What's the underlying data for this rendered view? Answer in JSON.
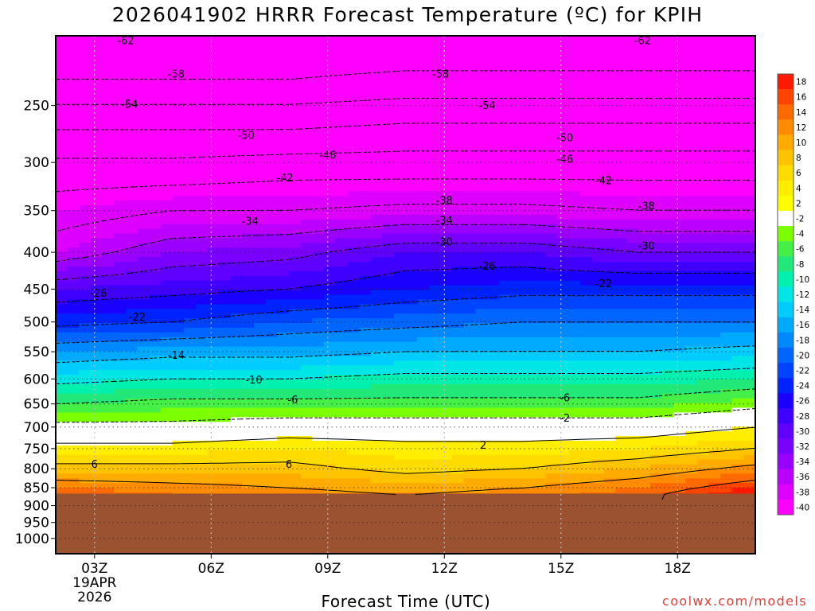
{
  "chart_data": {
    "type": "heatmap",
    "title": "2026041902 HRRR Forecast Temperature (ºC) for KPIH",
    "xlabel": "Forecast Time (UTC)",
    "ylabel": "",
    "credit": "coolwx.com/models",
    "x_range_hours": [
      2,
      20
    ],
    "y_axis": {
      "scale": "log",
      "range_hPa": [
        200,
        1050
      ],
      "ticks": [
        250,
        300,
        350,
        400,
        450,
        500,
        550,
        600,
        650,
        700,
        750,
        800,
        850,
        900,
        950,
        1000
      ]
    },
    "x_ticks": [
      {
        "hour": 3,
        "label": "03Z",
        "sub1": "19APR",
        "sub2": "2026"
      },
      {
        "hour": 6,
        "label": "06Z",
        "sub1": "",
        "sub2": ""
      },
      {
        "hour": 9,
        "label": "09Z",
        "sub1": "",
        "sub2": ""
      },
      {
        "hour": 12,
        "label": "12Z",
        "sub1": "",
        "sub2": ""
      },
      {
        "hour": 15,
        "label": "15Z",
        "sub1": "",
        "sub2": ""
      },
      {
        "hour": 18,
        "label": "18Z",
        "sub1": "",
        "sub2": ""
      }
    ],
    "grid": true,
    "surface_pressure_hPa": 866,
    "surface_color": "#9a5230",
    "colorbar": {
      "labels": [
        "18",
        "16",
        "14",
        "12",
        "10",
        "8",
        "6",
        "4",
        "2",
        "-2",
        "-4",
        "-6",
        "-8",
        "-10",
        "-12",
        "-14",
        "-16",
        "-18",
        "-20",
        "-22",
        "-24",
        "-26",
        "-28",
        "-30",
        "-32",
        "-34",
        "-36",
        "-38",
        "-40"
      ],
      "colors": [
        "#ff1a00",
        "#ff4400",
        "#ff6a00",
        "#ff8c00",
        "#ffab00",
        "#ffc400",
        "#ffdc00",
        "#ffee00",
        "#ffff00",
        "#ffffff",
        "#7cff00",
        "#44f048",
        "#22e87a",
        "#00f0b0",
        "#00e6e6",
        "#00ccff",
        "#00aaff",
        "#0088ff",
        "#0066ff",
        "#0044ff",
        "#0022ff",
        "#1a00ff",
        "#4000ff",
        "#6000ff",
        "#7a00ff",
        "#9a00ff",
        "#bb00ff",
        "#dd00ff",
        "#ff00ff"
      ]
    },
    "temperature_profiles": [
      {
        "hour": 2,
        "levels": [
          [
            200,
            -62
          ],
          [
            230,
            -58
          ],
          [
            270,
            -50
          ],
          [
            310,
            -44
          ],
          [
            350,
            -40
          ],
          [
            400,
            -36
          ],
          [
            450,
            -28
          ],
          [
            500,
            -23
          ],
          [
            550,
            -16
          ],
          [
            600,
            -11
          ],
          [
            650,
            -6
          ],
          [
            700,
            -1
          ],
          [
            750,
            3
          ],
          [
            800,
            7
          ],
          [
            850,
            12
          ],
          [
            870,
            14
          ]
        ]
      },
      {
        "hour": 5,
        "levels": [
          [
            200,
            -62
          ],
          [
            230,
            -58
          ],
          [
            270,
            -50
          ],
          [
            310,
            -44
          ],
          [
            350,
            -38
          ],
          [
            400,
            -32
          ],
          [
            450,
            -27
          ],
          [
            500,
            -22
          ],
          [
            550,
            -15
          ],
          [
            600,
            -10
          ],
          [
            650,
            -5
          ],
          [
            700,
            -1
          ],
          [
            750,
            3
          ],
          [
            800,
            7
          ],
          [
            850,
            11
          ],
          [
            870,
            12
          ]
        ]
      },
      {
        "hour": 8,
        "levels": [
          [
            200,
            -62
          ],
          [
            230,
            -58
          ],
          [
            270,
            -50
          ],
          [
            310,
            -43
          ],
          [
            350,
            -38
          ],
          [
            400,
            -31
          ],
          [
            450,
            -26
          ],
          [
            500,
            -20
          ],
          [
            550,
            -15
          ],
          [
            600,
            -10
          ],
          [
            650,
            -5
          ],
          [
            700,
            0
          ],
          [
            750,
            4
          ],
          [
            800,
            7
          ],
          [
            850,
            10
          ],
          [
            870,
            11
          ]
        ]
      },
      {
        "hour": 11,
        "levels": [
          [
            200,
            -62
          ],
          [
            230,
            -57
          ],
          [
            270,
            -49
          ],
          [
            310,
            -43
          ],
          [
            350,
            -37
          ],
          [
            400,
            -28
          ],
          [
            450,
            -24
          ],
          [
            500,
            -19
          ],
          [
            550,
            -14
          ],
          [
            600,
            -9
          ],
          [
            650,
            -5
          ],
          [
            700,
            0
          ],
          [
            750,
            3
          ],
          [
            800,
            5
          ],
          [
            850,
            9
          ],
          [
            870,
            10
          ]
        ]
      },
      {
        "hour": 14,
        "levels": [
          [
            200,
            -62
          ],
          [
            230,
            -57
          ],
          [
            270,
            -49
          ],
          [
            310,
            -43
          ],
          [
            350,
            -37
          ],
          [
            400,
            -28
          ],
          [
            450,
            -23
          ],
          [
            500,
            -18
          ],
          [
            550,
            -14
          ],
          [
            600,
            -9
          ],
          [
            650,
            -5
          ],
          [
            700,
            0
          ],
          [
            750,
            3
          ],
          [
            800,
            6
          ],
          [
            850,
            10
          ],
          [
            870,
            11
          ]
        ]
      },
      {
        "hour": 17,
        "levels": [
          [
            200,
            -62
          ],
          [
            230,
            -57
          ],
          [
            270,
            -49
          ],
          [
            310,
            -43
          ],
          [
            350,
            -38
          ],
          [
            400,
            -30
          ],
          [
            450,
            -23
          ],
          [
            500,
            -18
          ],
          [
            550,
            -14
          ],
          [
            600,
            -9
          ],
          [
            650,
            -5
          ],
          [
            700,
            0
          ],
          [
            750,
            4
          ],
          [
            800,
            8
          ],
          [
            850,
            12
          ],
          [
            870,
            13
          ]
        ]
      },
      {
        "hour": 20,
        "levels": [
          [
            200,
            -62
          ],
          [
            230,
            -57
          ],
          [
            270,
            -49
          ],
          [
            310,
            -43
          ],
          [
            350,
            -38
          ],
          [
            400,
            -30
          ],
          [
            450,
            -23
          ],
          [
            500,
            -18
          ],
          [
            550,
            -13
          ],
          [
            600,
            -8
          ],
          [
            650,
            -3
          ],
          [
            700,
            2
          ],
          [
            750,
            6
          ],
          [
            800,
            11
          ],
          [
            850,
            16
          ],
          [
            870,
            18
          ]
        ]
      }
    ],
    "contour_labels": [
      {
        "hour": 3.8,
        "p": 203,
        "text": "-62"
      },
      {
        "hour": 17.1,
        "p": 203,
        "text": "-62"
      },
      {
        "hour": 5.1,
        "p": 226,
        "text": "-58"
      },
      {
        "hour": 11.9,
        "p": 226,
        "text": "-58"
      },
      {
        "hour": 3.9,
        "p": 249,
        "text": "-54"
      },
      {
        "hour": 13.1,
        "p": 250,
        "text": "-54"
      },
      {
        "hour": 6.9,
        "p": 275,
        "text": "-50"
      },
      {
        "hour": 15.1,
        "p": 277,
        "text": "-50"
      },
      {
        "hour": 9.0,
        "p": 293,
        "text": "-46"
      },
      {
        "hour": 15.1,
        "p": 297,
        "text": "-46"
      },
      {
        "hour": 7.9,
        "p": 315,
        "text": "-42"
      },
      {
        "hour": 16.1,
        "p": 318,
        "text": "-42"
      },
      {
        "hour": 12.0,
        "p": 339,
        "text": "-38"
      },
      {
        "hour": 17.2,
        "p": 345,
        "text": "-38"
      },
      {
        "hour": 7.0,
        "p": 362,
        "text": "-34"
      },
      {
        "hour": 12.0,
        "p": 361,
        "text": "-34"
      },
      {
        "hour": 12.0,
        "p": 387,
        "text": "-30"
      },
      {
        "hour": 17.2,
        "p": 392,
        "text": "-30"
      },
      {
        "hour": 13.1,
        "p": 418,
        "text": "-26"
      },
      {
        "hour": 3.1,
        "p": 456,
        "text": "-26"
      },
      {
        "hour": 16.1,
        "p": 442,
        "text": "-22"
      },
      {
        "hour": 4.1,
        "p": 492,
        "text": "-22"
      },
      {
        "hour": 5.1,
        "p": 556,
        "text": "-14"
      },
      {
        "hour": 7.1,
        "p": 602,
        "text": "-10"
      },
      {
        "hour": 8.1,
        "p": 641,
        "text": "-6"
      },
      {
        "hour": 15.1,
        "p": 637,
        "text": "-6"
      },
      {
        "hour": 15.1,
        "p": 680,
        "text": "-2"
      },
      {
        "hour": 13.0,
        "p": 742,
        "text": "2"
      },
      {
        "hour": 3.0,
        "p": 788,
        "text": "6"
      },
      {
        "hour": 8.0,
        "p": 788,
        "text": "6"
      }
    ]
  }
}
